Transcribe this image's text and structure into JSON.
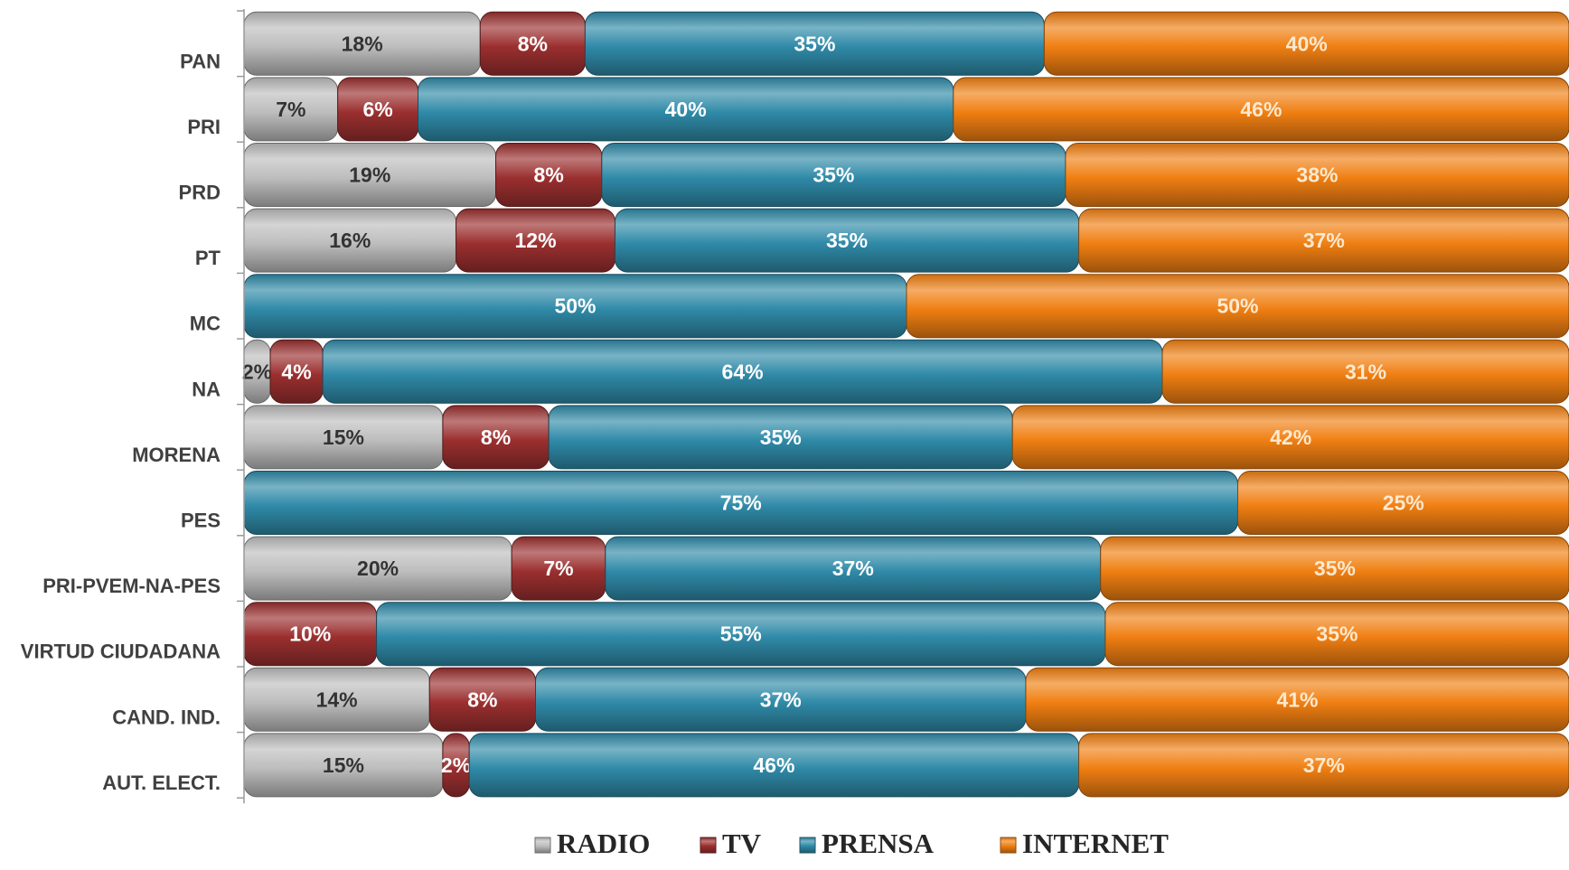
{
  "chart_data": {
    "type": "bar",
    "orientation": "horizontal",
    "stacked": "percent",
    "categories": [
      "PAN",
      "PRI",
      "PRD",
      "PT",
      "MC",
      "NA",
      "MORENA",
      "PES",
      "PRI-PVEM-NA-PES",
      "VIRTUD CIUDADANA",
      "CAND. IND.",
      "AUT. ELECT."
    ],
    "series": [
      {
        "name": "RADIO",
        "values": [
          18,
          7,
          19,
          16,
          0,
          2,
          15,
          0,
          20,
          0,
          14,
          15
        ],
        "labels": [
          "18%",
          "7%",
          "19%",
          "16%",
          "",
          "2%",
          "15%",
          "",
          "20%",
          "",
          "14%",
          "15%"
        ]
      },
      {
        "name": "TV",
        "values": [
          8,
          6,
          8,
          12,
          0,
          4,
          8,
          0,
          7,
          10,
          8,
          2
        ],
        "labels": [
          "8%",
          "6%",
          "8%",
          "12%",
          "",
          "4%",
          "8%",
          "",
          "7%",
          "10%",
          "8%",
          "2%"
        ]
      },
      {
        "name": "PRENSA",
        "values": [
          35,
          40,
          35,
          35,
          50,
          64,
          35,
          75,
          37,
          55,
          37,
          46
        ],
        "labels": [
          "35%",
          "40%",
          "35%",
          "35%",
          "50%",
          "64%",
          "35%",
          "75%",
          "37%",
          "55%",
          "37%",
          "46%"
        ]
      },
      {
        "name": "INTERNET",
        "values": [
          40,
          46,
          38,
          37,
          50,
          31,
          42,
          25,
          35,
          35,
          41,
          37
        ],
        "labels": [
          "40%",
          "46%",
          "38%",
          "37%",
          "50%",
          "31%",
          "42%",
          "25%",
          "35%",
          "35%",
          "41%",
          "37%"
        ]
      }
    ],
    "colors": {
      "RADIO": "#bdbdbd",
      "TV": "#9b2f2f",
      "PRENSA": "#2f8aa8",
      "INTERNET": "#f07f12"
    },
    "label_colors": {
      "RADIO": "#333333",
      "TV": "#ffffff",
      "PRENSA": "#ffffff",
      "INTERNET": "#fde9d0"
    },
    "xlim": [
      0,
      100
    ],
    "legend": "bottom",
    "grid": false
  }
}
